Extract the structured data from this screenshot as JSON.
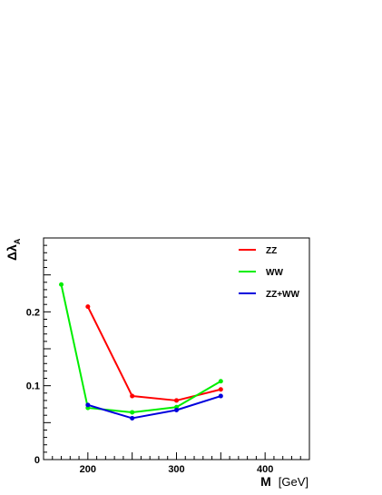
{
  "chart_data": {
    "type": "line",
    "title": "",
    "xlabel": "M",
    "xlabel_unit": "[GeV]",
    "ylabel": "Δλ",
    "ylabel_subscript": "A",
    "xlim": [
      150,
      450
    ],
    "ylim": [
      0,
      0.3
    ],
    "x_ticks": [
      200,
      300,
      400
    ],
    "y_ticks": [
      0,
      0.1,
      0.2
    ],
    "y_tick_labels": [
      "0",
      "0.1",
      "0.2"
    ],
    "grid": false,
    "legend_position": "top-right",
    "series": [
      {
        "name": "ZZ",
        "color": "#ff0000",
        "x": [
          200,
          250,
          300,
          350
        ],
        "y": [
          0.207,
          0.086,
          0.08,
          0.095
        ]
      },
      {
        "name": "WW",
        "color": "#00ee00",
        "x": [
          170,
          200,
          250,
          300,
          350
        ],
        "y": [
          0.237,
          0.07,
          0.064,
          0.071,
          0.106
        ]
      },
      {
        "name": "ZZ+WW",
        "color": "#0000dd",
        "x": [
          200,
          250,
          300,
          350
        ],
        "y": [
          0.074,
          0.056,
          0.067,
          0.086
        ]
      }
    ]
  }
}
